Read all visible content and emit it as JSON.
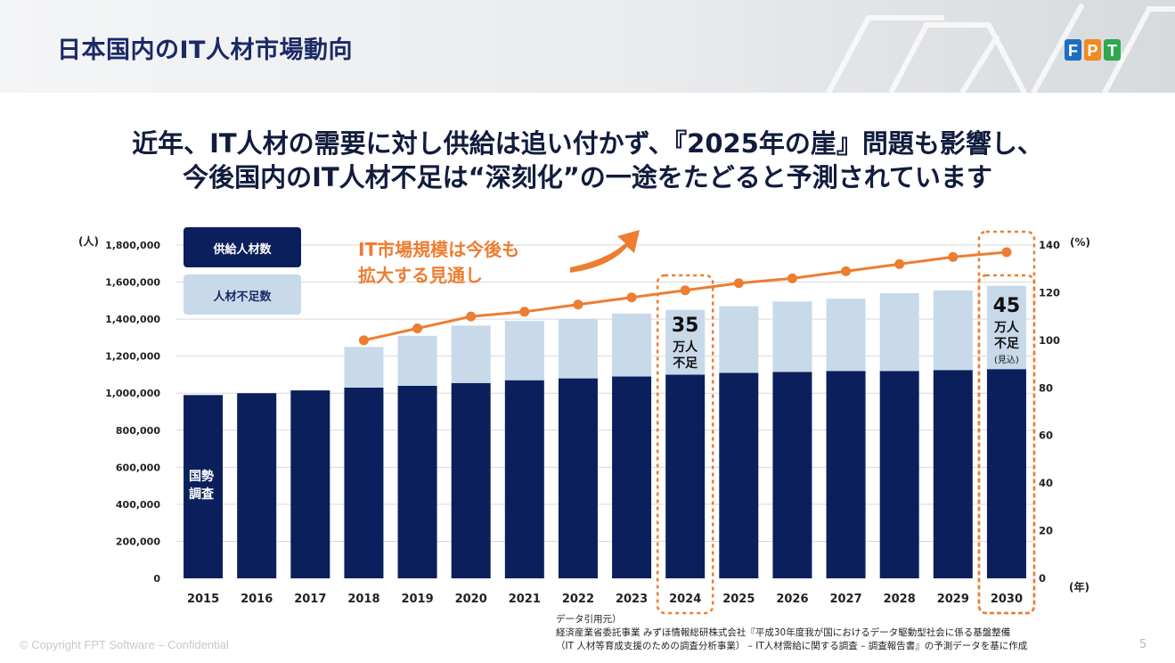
{
  "header": {
    "title": "日本国内のIT人材市場動向",
    "logo_text": "FPT"
  },
  "headline": {
    "line1": "近年、IT人材の需要に対し供給は追い付かず、『2025年の崖』問題も影響し、",
    "line2": "今後国内のIT人材不足は“深刻化”の一途をたどると予測されています"
  },
  "chart_data": {
    "type": "bar",
    "categories": [
      "2015",
      "2016",
      "2017",
      "2018",
      "2019",
      "2020",
      "2021",
      "2022",
      "2023",
      "2024",
      "2025",
      "2026",
      "2027",
      "2028",
      "2029",
      "2030"
    ],
    "series": [
      {
        "name": "供給人材数",
        "type": "bar",
        "color": "#0b1f5c",
        "values": [
          990000,
          1000000,
          1015000,
          1030000,
          1040000,
          1055000,
          1070000,
          1080000,
          1090000,
          1100000,
          1110000,
          1115000,
          1120000,
          1120000,
          1125000,
          1130000
        ]
      },
      {
        "name": "人材不足数",
        "type": "bar",
        "color": "#c8d9ea",
        "values": [
          0,
          0,
          0,
          220000,
          270000,
          310000,
          320000,
          320000,
          340000,
          350000,
          360000,
          380000,
          390000,
          420000,
          430000,
          450000
        ]
      },
      {
        "name": "IT市場規模",
        "type": "line",
        "axis": "right",
        "color": "#ed7d31",
        "values": [
          null,
          null,
          null,
          100,
          105,
          110,
          112,
          115,
          118,
          121,
          124,
          126,
          129,
          132,
          135,
          137
        ]
      }
    ],
    "left_axis": {
      "unit": "(人)",
      "ylim": [
        0,
        1800000
      ],
      "ticks": [
        "0",
        "200,000",
        "400,000",
        "600,000",
        "800,000",
        "1,000,000",
        "1,200,000",
        "1,400,000",
        "1,600,000",
        "1,800,000"
      ]
    },
    "right_axis": {
      "unit": "(%)",
      "ylim": [
        0,
        140
      ],
      "ticks": [
        "0",
        "20",
        "40",
        "60",
        "80",
        "100",
        "120",
        "140"
      ]
    },
    "x_unit": "(年)",
    "grid": true,
    "legend": {
      "supply": "供給人材数",
      "shortage": "人材不足数"
    },
    "annotations": {
      "census": [
        "国勢",
        "調査"
      ],
      "market_line1": "IT市場規模は今後も",
      "market_line2": "拡大する見通し",
      "y2024": {
        "number": "35",
        "line1": "万人",
        "line2": "不足"
      },
      "y2030": {
        "number": "45",
        "line1": "万人",
        "line2": "不足",
        "note": "(見込)"
      }
    }
  },
  "source": {
    "label": "データ引用元）",
    "line1": "経済産業省委託事業 みずほ情報総研株式会社『平成30年度我が国におけるデータ駆動型社会に係る基盤整備",
    "line2": "（IT 人材等育成支援のための調査分析事業） – IT人材需給に関する調査 – 調査報告書』の予測データを基に作成"
  },
  "footer": {
    "copyright": "© Copyright FPT Software –  Confidential",
    "page": "5"
  }
}
